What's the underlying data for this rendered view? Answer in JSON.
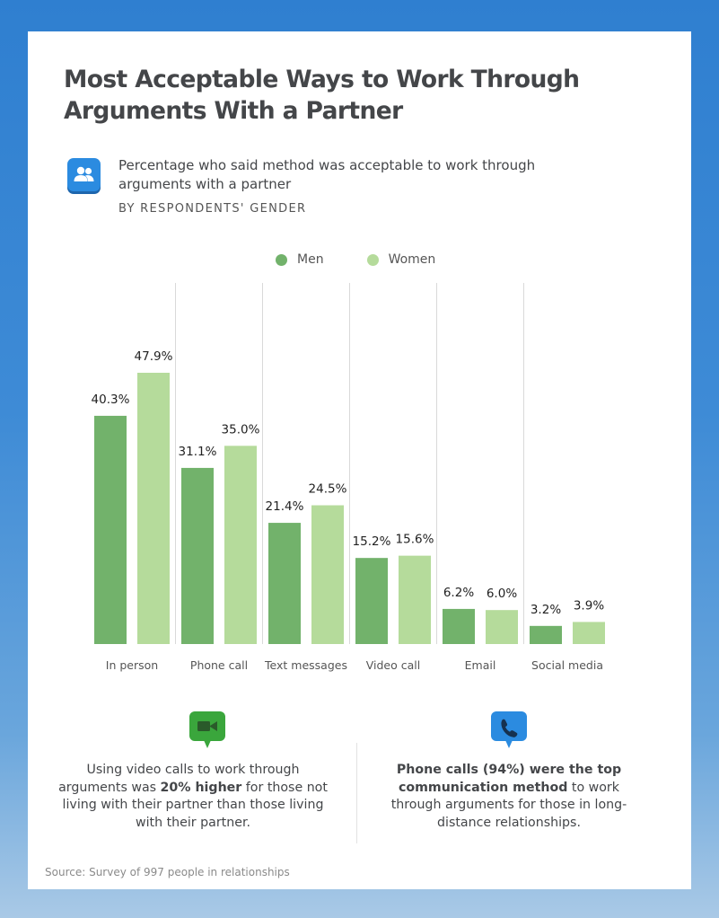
{
  "title": "Most Acceptable Ways to Work Through Arguments With a Partner",
  "subtitle": "Percentage who said method was acceptable to work through arguments with a partner",
  "by_label": "BY RESPONDENTS' GENDER",
  "colors": {
    "men": "#72b26b",
    "women": "#b5db9b",
    "title": "#444649",
    "icon_blue": "#2b8be0",
    "icon_green": "#3aa63c"
  },
  "legend": {
    "men": "Men",
    "women": "Women"
  },
  "chart_data": {
    "type": "bar",
    "categories": [
      "In person",
      "Phone call",
      "Text messages",
      "Video call",
      "Email",
      "Social media"
    ],
    "series": [
      {
        "name": "Men",
        "values": [
          40.3,
          31.1,
          21.4,
          15.2,
          6.2,
          3.2
        ]
      },
      {
        "name": "Women",
        "values": [
          47.9,
          35.0,
          24.5,
          15.6,
          6.0,
          3.9
        ]
      }
    ],
    "value_labels": {
      "Men": [
        "40.3%",
        "31.1%",
        "21.4%",
        "15.2%",
        "6.2%",
        "3.2%"
      ],
      "Women": [
        "47.9%",
        "35.0%",
        "24.5%",
        "15.6%",
        "6.0%",
        "3.9%"
      ]
    },
    "legend_position": "top-center",
    "grid": false
  },
  "callouts": {
    "left": {
      "icon": "video-camera-icon",
      "pre": "Using video calls to work through arguments was ",
      "bold": "20% higher",
      "post": " for those not living with their partner than those living with their partner."
    },
    "right": {
      "icon": "phone-icon",
      "bold": "Phone calls (94%) were the top communication method",
      "post": " to work through arguments for those in long-distance relationships."
    }
  },
  "source": "Source: Survey of 997 people in relationships"
}
